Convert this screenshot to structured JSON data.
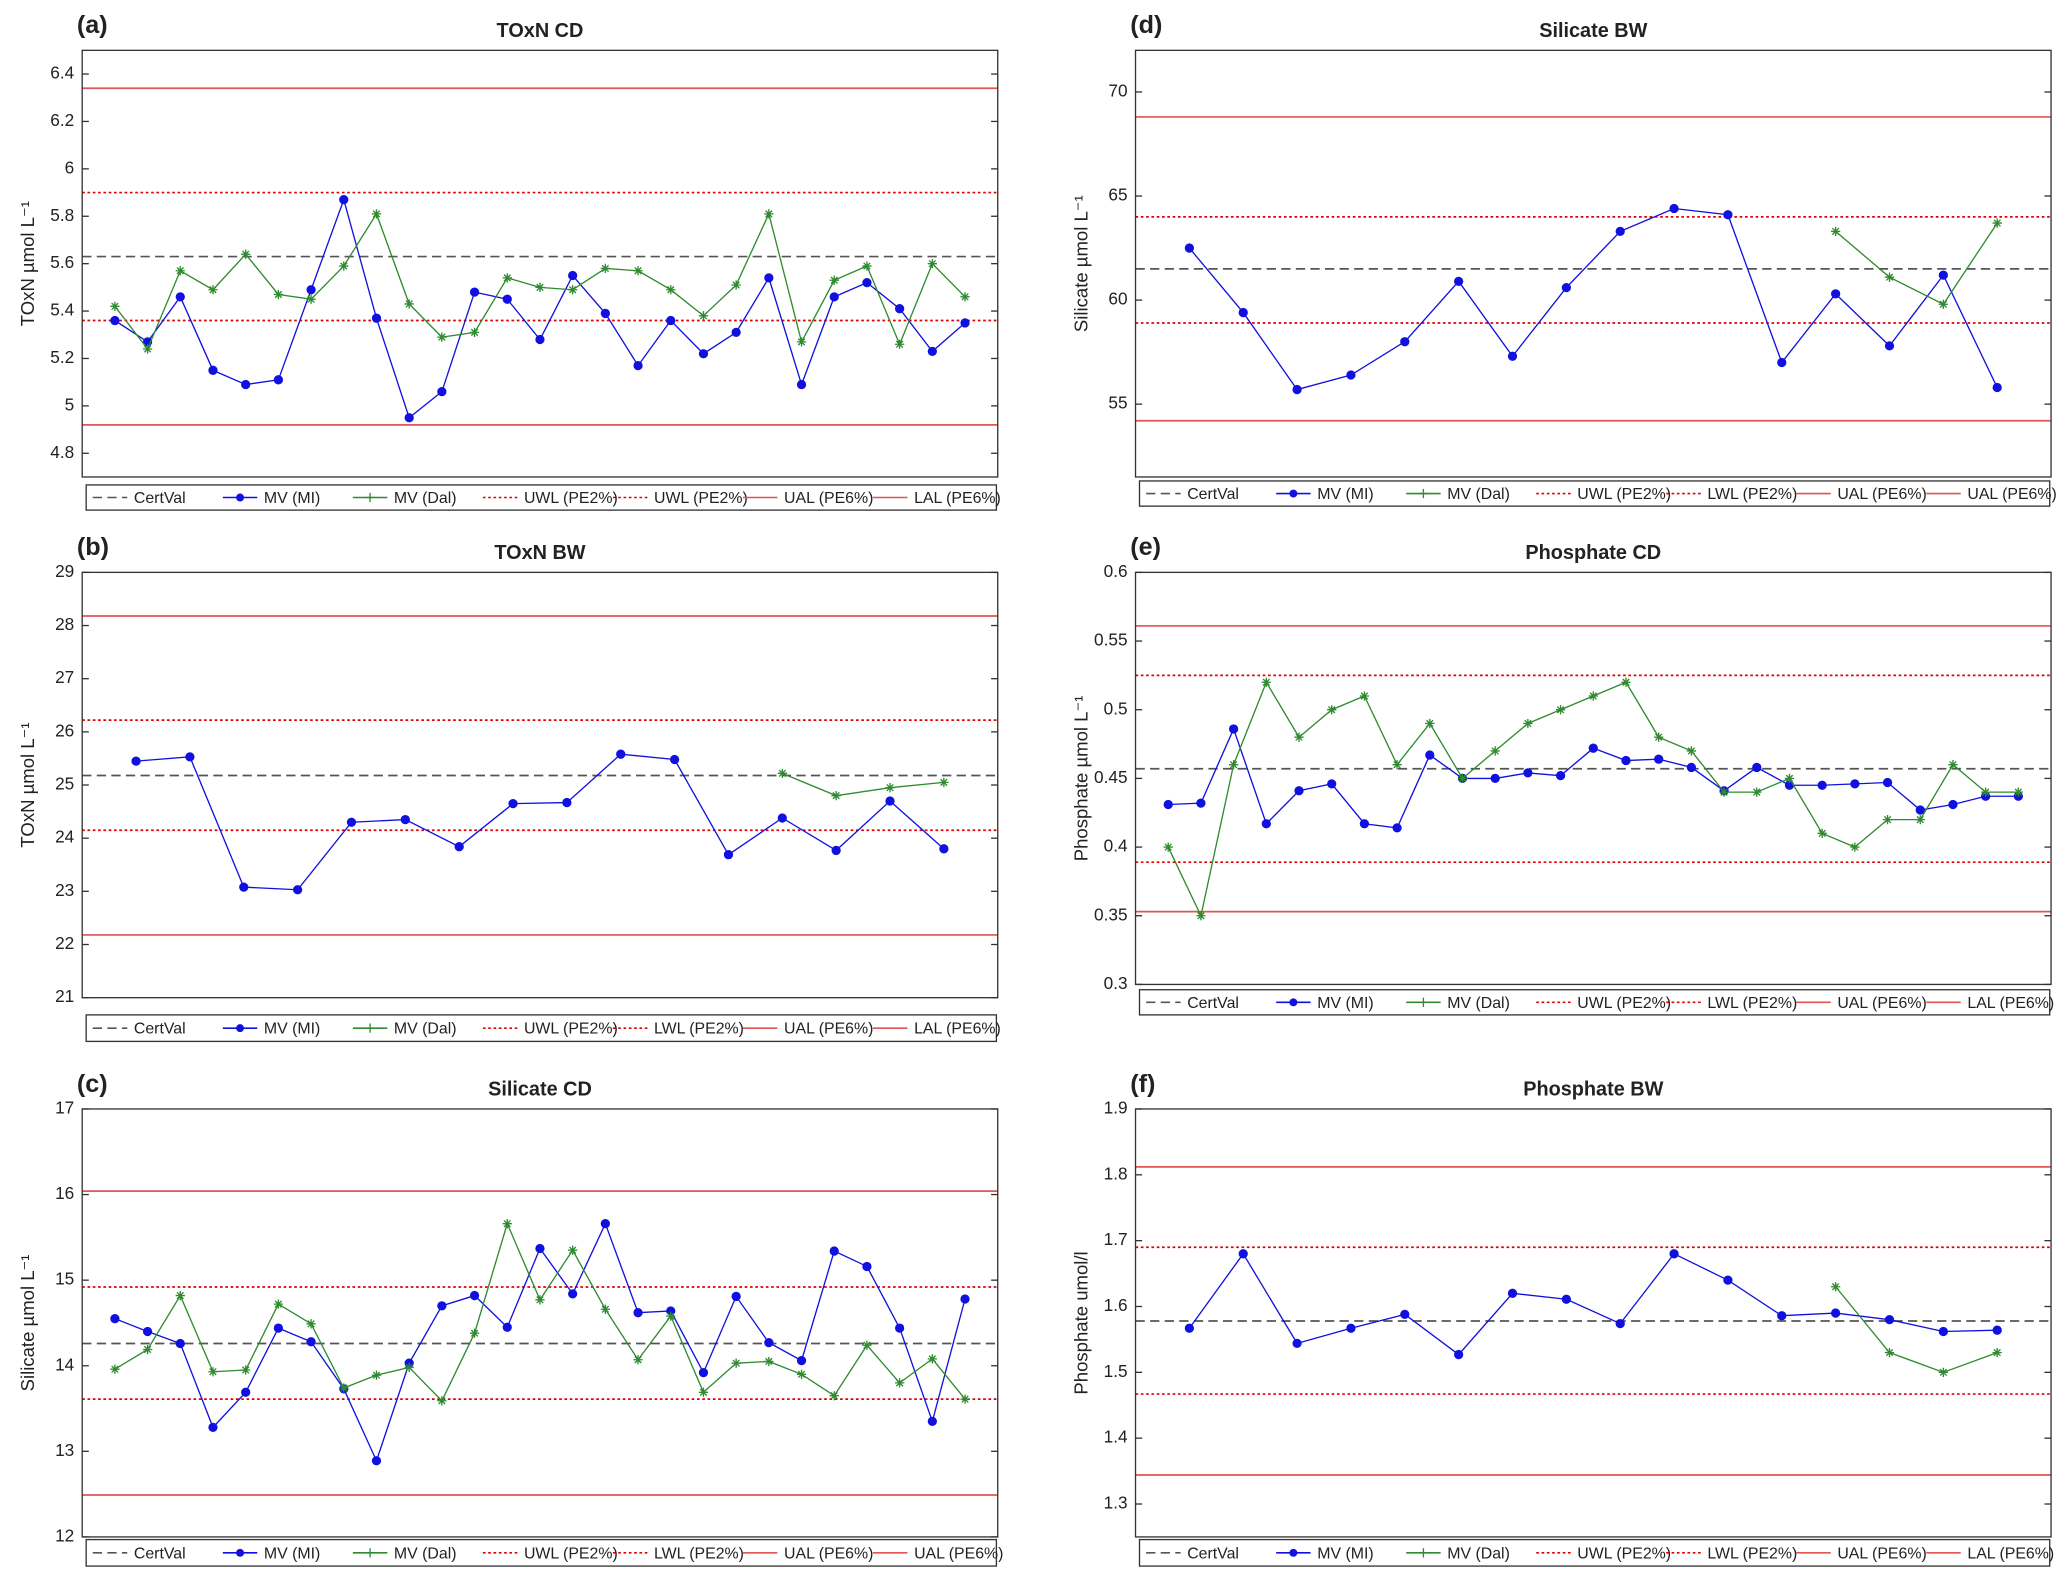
{
  "chart_data": [
    {
      "type": "line",
      "panel_label": "(a)",
      "title": "TOxN CD",
      "y_label": "TOxN µmol L⁻¹",
      "x": [
        1,
        2,
        3,
        4,
        5,
        6,
        7,
        8,
        9,
        10,
        11,
        12,
        13,
        14,
        15,
        16,
        17,
        18,
        19,
        20,
        21,
        22,
        23,
        24,
        25,
        26,
        27
      ],
      "xlim": [
        0,
        28
      ],
      "ylim": [
        4.7,
        6.5
      ],
      "yticks": [
        4.8,
        5,
        5.2,
        5.4,
        5.6,
        5.8,
        6,
        6.2,
        6.4
      ],
      "series": [
        {
          "name": "CertVal",
          "color": "#555555",
          "style": "dashed",
          "value": 5.63
        },
        {
          "name": "MV (MI)",
          "color": "#1010e0",
          "marker": "circle",
          "values": [
            5.36,
            5.27,
            5.46,
            5.15,
            5.09,
            5.11,
            5.49,
            5.87,
            5.37,
            4.95,
            5.06,
            5.48,
            5.45,
            5.28,
            5.55,
            5.39,
            5.17,
            5.36,
            5.22,
            5.31,
            5.54,
            5.09,
            5.46,
            5.52,
            5.41,
            5.23,
            5.35
          ]
        },
        {
          "name": "MV (Dal)",
          "color": "#2e8b2e",
          "marker": "star",
          "values": [
            5.42,
            5.24,
            5.57,
            5.49,
            5.64,
            5.47,
            5.45,
            5.59,
            5.81,
            5.43,
            5.29,
            5.31,
            5.54,
            5.5,
            5.49,
            5.58,
            5.57,
            5.49,
            5.38,
            5.51,
            5.81,
            5.27,
            5.53,
            5.59,
            5.26,
            5.6,
            5.46
          ]
        },
        {
          "name": "UWL (PE2%)",
          "color": "#e00000",
          "style": "dotted",
          "value": 5.9
        },
        {
          "name": "UWL (PE2%)",
          "color": "#e00000",
          "style": "dotted",
          "value": 5.36
        },
        {
          "name": "UAL (PE6%)",
          "color": "#e05555",
          "style": "solid",
          "value": 6.34
        },
        {
          "name": "LAL (PE6%)",
          "color": "#e05555",
          "style": "solid",
          "value": 4.92
        }
      ]
    },
    {
      "type": "line",
      "panel_label": "(b)",
      "title": "TOxN BW",
      "y_label": "TOxN µmol L⁻¹",
      "x": [
        1,
        2,
        3,
        4,
        5,
        6,
        7,
        8,
        9,
        10,
        11,
        12,
        13,
        14,
        15,
        16
      ],
      "xlim": [
        0,
        17
      ],
      "ylim": [
        21,
        29
      ],
      "yticks": [
        21,
        22,
        23,
        24,
        25,
        26,
        27,
        28,
        29
      ],
      "series": [
        {
          "name": "CertVal",
          "color": "#555555",
          "style": "dashed",
          "value": 25.18
        },
        {
          "name": "MV (MI)",
          "color": "#1010e0",
          "marker": "circle",
          "values": [
            25.45,
            25.53,
            23.08,
            23.03,
            24.3,
            24.35,
            23.84,
            24.65,
            24.67,
            25.58,
            25.48,
            23.69,
            24.38,
            23.77,
            24.7,
            23.8
          ]
        },
        {
          "name": "MV (Dal)",
          "color": "#2e8b2e",
          "marker": "star",
          "values": [
            null,
            null,
            null,
            null,
            null,
            null,
            null,
            null,
            null,
            null,
            null,
            null,
            25.22,
            24.8,
            24.95,
            25.05
          ]
        },
        {
          "name": "UWL (PE2%)",
          "color": "#e00000",
          "style": "dotted",
          "value": 26.22
        },
        {
          "name": "LWL (PE2%)",
          "color": "#e00000",
          "style": "dotted",
          "value": 24.15
        },
        {
          "name": "UAL (PE6%)",
          "color": "#e05555",
          "style": "solid",
          "value": 28.18
        },
        {
          "name": "LAL (PE6%)",
          "color": "#e05555",
          "style": "solid",
          "value": 22.18
        }
      ]
    },
    {
      "type": "line",
      "panel_label": "(c)",
      "title": "Silicate CD",
      "y_label": "Silicate µmol L⁻¹",
      "x": [
        1,
        2,
        3,
        4,
        5,
        6,
        7,
        8,
        9,
        10,
        11,
        12,
        13,
        14,
        15,
        16,
        17,
        18,
        19,
        20,
        21,
        22,
        23,
        24,
        25,
        26,
        27
      ],
      "xlim": [
        0,
        28
      ],
      "ylim": [
        12,
        17
      ],
      "yticks": [
        12,
        13,
        14,
        15,
        16,
        17
      ],
      "series": [
        {
          "name": "CertVal",
          "color": "#555555",
          "style": "dashed",
          "value": 14.26
        },
        {
          "name": "MV (MI)",
          "color": "#1010e0",
          "marker": "circle",
          "values": [
            14.55,
            14.4,
            14.26,
            13.28,
            13.69,
            14.44,
            14.28,
            13.73,
            12.89,
            14.03,
            14.7,
            14.82,
            14.45,
            15.37,
            14.84,
            15.66,
            14.62,
            14.64,
            13.92,
            14.81,
            14.27,
            14.06,
            15.34,
            15.16,
            14.44,
            13.35,
            14.78
          ]
        },
        {
          "name": "MV (Dal)",
          "color": "#2e8b2e",
          "marker": "star",
          "values": [
            13.96,
            14.19,
            14.82,
            13.93,
            13.95,
            14.72,
            14.49,
            13.74,
            13.89,
            13.98,
            13.59,
            14.38,
            15.66,
            14.77,
            15.35,
            14.66,
            14.07,
            14.58,
            13.69,
            14.03,
            14.05,
            13.9,
            13.65,
            14.24,
            13.8,
            14.08,
            13.61
          ]
        },
        {
          "name": "UWL (PE2%)",
          "color": "#e00000",
          "style": "dotted",
          "value": 14.92
        },
        {
          "name": "LWL (PE2%)",
          "color": "#e00000",
          "style": "dotted",
          "value": 13.61
        },
        {
          "name": "UAL (PE6%)",
          "color": "#e05555",
          "style": "solid",
          "value": 16.04
        },
        {
          "name": "UAL (PE6%)",
          "color": "#e05555",
          "style": "solid",
          "value": 12.49
        }
      ]
    },
    {
      "type": "line",
      "panel_label": "(d)",
      "title": "Silicate BW",
      "y_label": "Silicate µmol L⁻¹",
      "x": [
        1,
        2,
        3,
        4,
        5,
        6,
        7,
        8,
        9,
        10,
        11,
        12,
        13,
        14,
        15,
        16
      ],
      "xlim": [
        0,
        17
      ],
      "ylim": [
        51.5,
        72
      ],
      "yticks": [
        55,
        60,
        65,
        70
      ],
      "series": [
        {
          "name": "CertVal",
          "color": "#555555",
          "style": "dashed",
          "value": 61.5
        },
        {
          "name": "MV (MI)",
          "color": "#1010e0",
          "marker": "circle",
          "values": [
            62.5,
            59.4,
            55.7,
            56.4,
            58.0,
            60.9,
            57.3,
            60.6,
            63.3,
            64.4,
            64.1,
            57.0,
            60.3,
            57.8,
            61.2,
            55.8
          ]
        },
        {
          "name": "MV (Dal)",
          "color": "#2e8b2e",
          "marker": "star",
          "values": [
            null,
            null,
            null,
            null,
            null,
            null,
            null,
            null,
            null,
            null,
            null,
            null,
            63.3,
            61.1,
            59.8,
            63.7
          ]
        },
        {
          "name": "UWL (PE2%)",
          "color": "#e00000",
          "style": "dotted",
          "value": 64.0
        },
        {
          "name": "LWL (PE2%)",
          "color": "#e00000",
          "style": "dotted",
          "value": 58.9
        },
        {
          "name": "UAL (PE6%)",
          "color": "#e05555",
          "style": "solid",
          "value": 68.8
        },
        {
          "name": "UAL (PE6%)",
          "color": "#e05555",
          "style": "solid",
          "value": 54.2
        }
      ]
    },
    {
      "type": "line",
      "panel_label": "(e)",
      "title": "Phosphate CD",
      "y_label": "Phosphate µmol L⁻¹",
      "x": [
        1,
        2,
        3,
        4,
        5,
        6,
        7,
        8,
        9,
        10,
        11,
        12,
        13,
        14,
        15,
        16,
        17,
        18,
        19,
        20,
        21,
        22,
        23,
        24,
        25,
        26,
        27
      ],
      "xlim": [
        0,
        28
      ],
      "ylim": [
        0.3,
        0.6
      ],
      "yticks": [
        0.3,
        0.35,
        0.4,
        0.45,
        0.5,
        0.55,
        0.6
      ],
      "series": [
        {
          "name": "CertVal",
          "color": "#555555",
          "style": "dashed",
          "value": 0.457
        },
        {
          "name": "MV (MI)",
          "color": "#1010e0",
          "marker": "circle",
          "values": [
            0.431,
            0.432,
            0.486,
            0.417,
            0.441,
            0.446,
            0.417,
            0.414,
            0.467,
            0.45,
            0.45,
            0.454,
            0.452,
            0.472,
            0.463,
            0.464,
            0.458,
            0.441,
            0.458,
            0.445,
            0.445,
            0.446,
            0.447,
            0.427,
            0.431,
            0.437,
            0.437
          ]
        },
        {
          "name": "MV (Dal)",
          "color": "#2e8b2e",
          "marker": "star",
          "values": [
            0.4,
            0.35,
            0.46,
            0.52,
            0.48,
            0.5,
            0.51,
            0.46,
            0.49,
            0.45,
            0.47,
            0.49,
            0.5,
            0.51,
            0.52,
            0.48,
            0.47,
            0.44,
            0.44,
            0.45,
            0.41,
            0.4,
            0.42,
            0.42,
            0.46,
            0.44,
            0.44
          ]
        },
        {
          "name": "UWL (PE2%)",
          "color": "#e00000",
          "style": "dotted",
          "value": 0.525
        },
        {
          "name": "LWL (PE2%)",
          "color": "#e00000",
          "style": "dotted",
          "value": 0.389
        },
        {
          "name": "UAL (PE6%)",
          "color": "#e05555",
          "style": "solid",
          "value": 0.561
        },
        {
          "name": "LAL (PE6%)",
          "color": "#e05555",
          "style": "solid",
          "value": 0.353
        }
      ]
    },
    {
      "type": "line",
      "panel_label": "(f)",
      "title": "Phosphate BW",
      "y_label": "Phosphate umol/l",
      "x": [
        1,
        2,
        3,
        4,
        5,
        6,
        7,
        8,
        9,
        10,
        11,
        12,
        13,
        14,
        15,
        16
      ],
      "xlim": [
        0,
        17
      ],
      "ylim": [
        1.25,
        1.9
      ],
      "yticks": [
        1.3,
        1.4,
        1.5,
        1.6,
        1.7,
        1.8,
        1.9
      ],
      "series": [
        {
          "name": "CertVal",
          "color": "#555555",
          "style": "dashed",
          "value": 1.578
        },
        {
          "name": "MV (MI)",
          "color": "#1010e0",
          "marker": "circle",
          "values": [
            1.567,
            1.68,
            1.544,
            1.567,
            1.588,
            1.527,
            1.62,
            1.611,
            1.574,
            1.68,
            1.64,
            1.586,
            1.59,
            1.58,
            1.562,
            1.564
          ]
        },
        {
          "name": "MV (Dal)",
          "color": "#2e8b2e",
          "marker": "star",
          "values": [
            null,
            null,
            null,
            null,
            null,
            null,
            null,
            null,
            null,
            null,
            null,
            null,
            1.63,
            1.53,
            1.5,
            1.53
          ]
        },
        {
          "name": "UWL (PE2%)",
          "color": "#e00000",
          "style": "dotted",
          "value": 1.69
        },
        {
          "name": "LWL (PE2%)",
          "color": "#e00000",
          "style": "dotted",
          "value": 1.467
        },
        {
          "name": "UAL (PE6%)",
          "color": "#e05555",
          "style": "solid",
          "value": 1.812
        },
        {
          "name": "LAL (PE6%)",
          "color": "#e05555",
          "style": "solid",
          "value": 1.344
        }
      ]
    }
  ]
}
